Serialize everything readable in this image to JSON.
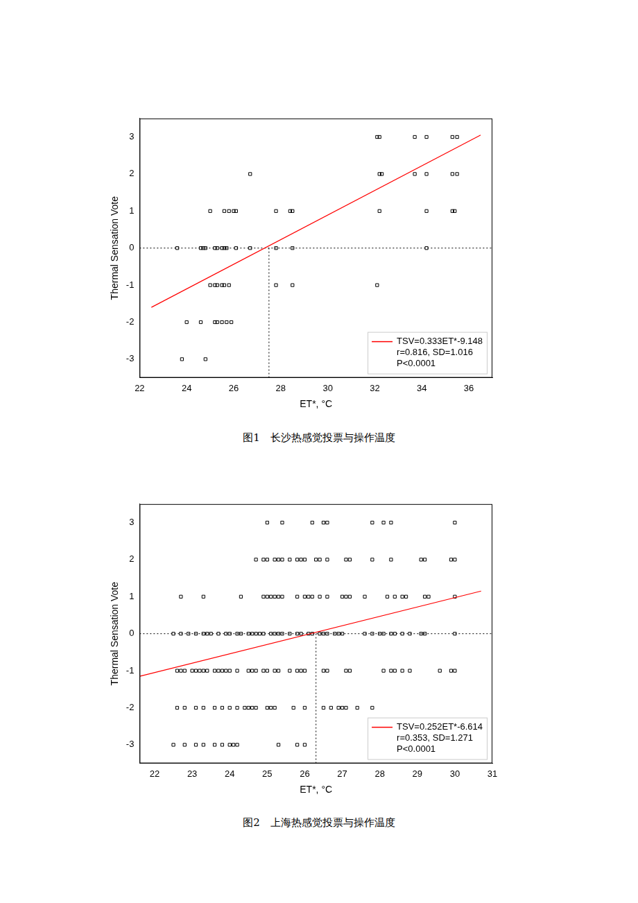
{
  "chart_data": [
    {
      "type": "scatter",
      "title": "图1　长沙热感觉投票与操作温度",
      "x_label": "ET*, °C",
      "y_label": "Thermal Sensation Vote",
      "xlim": [
        22,
        37
      ],
      "xticks": [
        22,
        24,
        26,
        28,
        30,
        32,
        34,
        36
      ],
      "ylim": [
        -3.5,
        3.5
      ],
      "yticks": [
        -3,
        -2,
        -1,
        0,
        1,
        2,
        3
      ],
      "grid": false,
      "legend": "lower right",
      "annotations": [
        "r=0.816, SD=1.016",
        "P<0.0001"
      ],
      "series": [
        {
          "type": "scatter",
          "marker": "square",
          "color": "#000000",
          "x": [
            32.1,
            32.2,
            33.7,
            34.2,
            35.3,
            35.5,
            26.7,
            32.2,
            32.3,
            33.7,
            34.2,
            35.3,
            35.5,
            25.0,
            25.6,
            25.8,
            26.0,
            26.1,
            27.8,
            28.4,
            28.5,
            32.2,
            34.2,
            35.3,
            35.4,
            23.6,
            24.6,
            24.7,
            24.8,
            25.2,
            25.3,
            25.5,
            25.6,
            25.7,
            26.1,
            26.7,
            27.8,
            28.5,
            34.2,
            25.0,
            25.2,
            25.3,
            25.5,
            25.6,
            25.8,
            27.8,
            28.5,
            32.1,
            24.0,
            24.6,
            25.2,
            25.3,
            25.5,
            25.7,
            25.9,
            23.8,
            24.8
          ],
          "values": [
            3,
            3,
            3,
            3,
            3,
            3,
            2,
            2,
            2,
            2,
            2,
            2,
            2,
            1,
            1,
            1,
            1,
            1,
            1,
            1,
            1,
            1,
            1,
            1,
            1,
            0,
            0,
            0,
            0,
            0,
            0,
            0,
            0,
            0,
            0,
            0,
            0,
            0,
            0,
            -1,
            -1,
            -1,
            -1,
            -1,
            -1,
            -1,
            -1,
            -1,
            -2,
            -2,
            -2,
            -2,
            -2,
            -2,
            -2,
            -3,
            -3
          ]
        },
        {
          "name": "TSV=0.333ET*-9.148",
          "type": "line",
          "color": "#ff0000",
          "x": [
            22.5,
            36.5
          ],
          "values": [
            -1.6,
            3.05
          ]
        },
        {
          "type": "line",
          "line_style": "dotted",
          "color": "#000000",
          "x": [
            22,
            37
          ],
          "values": [
            0,
            0
          ]
        },
        {
          "type": "line",
          "line_style": "dotted",
          "color": "#000000",
          "x": [
            27.5,
            27.5
          ],
          "values": [
            -3.5,
            0
          ]
        }
      ]
    },
    {
      "type": "scatter",
      "title": "图2　上海热感觉投票与操作温度",
      "x_label": "ET*, °C",
      "y_label": "Thermal Sensation Vote",
      "xlim": [
        21.6,
        31
      ],
      "xticks": [
        22,
        23,
        24,
        25,
        26,
        27,
        28,
        29,
        30,
        31
      ],
      "ylim": [
        -3.5,
        3.5
      ],
      "yticks": [
        -3,
        -2,
        -1,
        0,
        1,
        2,
        3
      ],
      "grid": false,
      "legend": "lower right",
      "annotations": [
        "r=0.353, SD=1.271",
        "P<0.0001"
      ],
      "series": [
        {
          "type": "scatter",
          "marker": "square",
          "color": "#000000",
          "x": [
            25.0,
            25.4,
            26.2,
            26.5,
            26.6,
            27.8,
            28.1,
            28.3,
            30.0,
            24.7,
            24.9,
            25.0,
            25.2,
            25.3,
            25.4,
            25.6,
            25.8,
            25.9,
            26.0,
            26.3,
            26.4,
            26.6,
            27.1,
            27.2,
            27.8,
            28.3,
            29.1,
            29.2,
            29.9,
            30.0,
            22.7,
            23.3,
            24.3,
            24.9,
            25.0,
            25.1,
            25.2,
            25.3,
            25.4,
            25.8,
            26.0,
            26.1,
            26.2,
            26.4,
            26.6,
            27.0,
            27.1,
            27.2,
            27.6,
            28.2,
            28.4,
            28.6,
            28.7,
            29.2,
            29.3,
            30.0,
            22.5,
            22.7,
            22.9,
            23.1,
            23.3,
            23.4,
            23.5,
            23.7,
            23.9,
            24.0,
            24.2,
            24.3,
            24.5,
            24.6,
            24.7,
            24.8,
            24.9,
            25.1,
            25.2,
            25.3,
            25.4,
            25.6,
            25.8,
            25.9,
            26.1,
            26.2,
            26.4,
            26.5,
            26.6,
            26.8,
            26.9,
            27.0,
            27.6,
            27.8,
            28.0,
            28.1,
            28.3,
            28.4,
            28.6,
            28.8,
            29.1,
            29.2,
            30.0,
            22.6,
            22.7,
            22.8,
            23.0,
            23.1,
            23.2,
            23.3,
            23.4,
            23.6,
            23.7,
            23.8,
            23.9,
            24.0,
            24.2,
            24.5,
            24.6,
            24.7,
            24.9,
            25.0,
            25.2,
            25.3,
            25.6,
            25.8,
            25.9,
            26.0,
            26.5,
            26.6,
            27.1,
            27.2,
            28.1,
            28.3,
            28.4,
            28.6,
            28.8,
            29.6,
            29.9,
            30.0,
            22.6,
            22.8,
            23.1,
            23.3,
            23.6,
            23.8,
            24.0,
            24.2,
            24.4,
            24.5,
            24.6,
            24.7,
            25.0,
            25.1,
            25.2,
            25.7,
            26.0,
            26.5,
            26.7,
            26.9,
            27.0,
            27.1,
            27.4,
            27.8,
            22.5,
            22.8,
            23.1,
            23.3,
            23.6,
            23.8,
            24.0,
            24.1,
            24.2,
            25.3,
            25.8,
            26.0
          ],
          "values": [
            3,
            3,
            3,
            3,
            3,
            3,
            3,
            3,
            3,
            2,
            2,
            2,
            2,
            2,
            2,
            2,
            2,
            2,
            2,
            2,
            2,
            2,
            2,
            2,
            2,
            2,
            2,
            2,
            2,
            2,
            1,
            1,
            1,
            1,
            1,
            1,
            1,
            1,
            1,
            1,
            1,
            1,
            1,
            1,
            1,
            1,
            1,
            1,
            1,
            1,
            1,
            1,
            1,
            1,
            1,
            1,
            0,
            0,
            0,
            0,
            0,
            0,
            0,
            0,
            0,
            0,
            0,
            0,
            0,
            0,
            0,
            0,
            0,
            0,
            0,
            0,
            0,
            0,
            0,
            0,
            0,
            0,
            0,
            0,
            0,
            0,
            0,
            0,
            0,
            0,
            0,
            0,
            0,
            0,
            0,
            0,
            0,
            0,
            0,
            -1,
            -1,
            -1,
            -1,
            -1,
            -1,
            -1,
            -1,
            -1,
            -1,
            -1,
            -1,
            -1,
            -1,
            -1,
            -1,
            -1,
            -1,
            -1,
            -1,
            -1,
            -1,
            -1,
            -1,
            -1,
            -1,
            -1,
            -1,
            -1,
            -1,
            -1,
            -1,
            -1,
            -1,
            -1,
            -1,
            -1,
            -2,
            -2,
            -2,
            -2,
            -2,
            -2,
            -2,
            -2,
            -2,
            -2,
            -2,
            -2,
            -2,
            -2,
            -2,
            -2,
            -2,
            -2,
            -2,
            -2,
            -2,
            -2,
            -2,
            -2,
            -3,
            -3,
            -3,
            -3,
            -3,
            -3,
            -3,
            -3,
            -3,
            -3,
            -3,
            -3
          ]
        },
        {
          "name": "TSV=0.252ET*-6.614",
          "type": "line",
          "color": "#ff0000",
          "x": [
            21.6,
            30.7
          ],
          "values": [
            -1.15,
            1.15
          ]
        },
        {
          "type": "line",
          "line_style": "dotted",
          "color": "#000000",
          "x": [
            21.6,
            31
          ],
          "values": [
            0,
            0
          ]
        },
        {
          "type": "line",
          "line_style": "dotted",
          "color": "#000000",
          "x": [
            26.3,
            26.3
          ],
          "values": [
            -3.5,
            0
          ]
        }
      ]
    }
  ]
}
